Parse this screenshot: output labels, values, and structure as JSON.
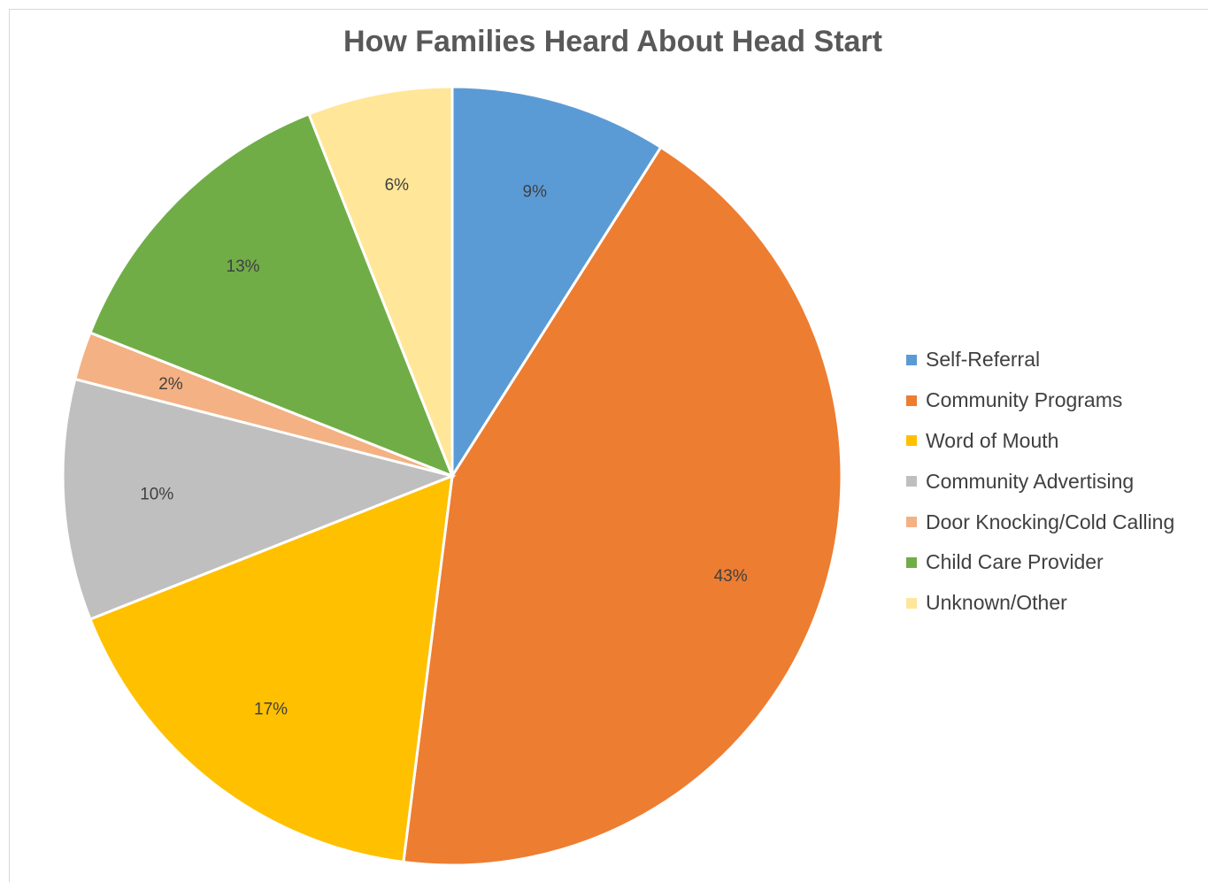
{
  "chart_data": {
    "type": "pie",
    "title": "How Families Heard About Head Start",
    "legend_position": "right",
    "slices": [
      {
        "name": "Self-Referral",
        "value": 9,
        "label": "9%",
        "color": "#5B9BD5"
      },
      {
        "name": "Community Programs",
        "value": 43,
        "label": "43%",
        "color": "#ED7D31"
      },
      {
        "name": "Word of Mouth",
        "value": 17,
        "label": "17%",
        "color": "#FFC000"
      },
      {
        "name": "Community Advertising",
        "value": 10,
        "label": "10%",
        "color": "#BFBFBF"
      },
      {
        "name": "Door Knocking/Cold Calling",
        "value": 2,
        "label": "2%",
        "color": "#F4B183"
      },
      {
        "name": "Child Care Provider",
        "value": 13,
        "label": "13%",
        "color": "#70AD47"
      },
      {
        "name": "Unknown/Other",
        "value": 6,
        "label": "6%",
        "color": "#FFE699"
      }
    ]
  }
}
